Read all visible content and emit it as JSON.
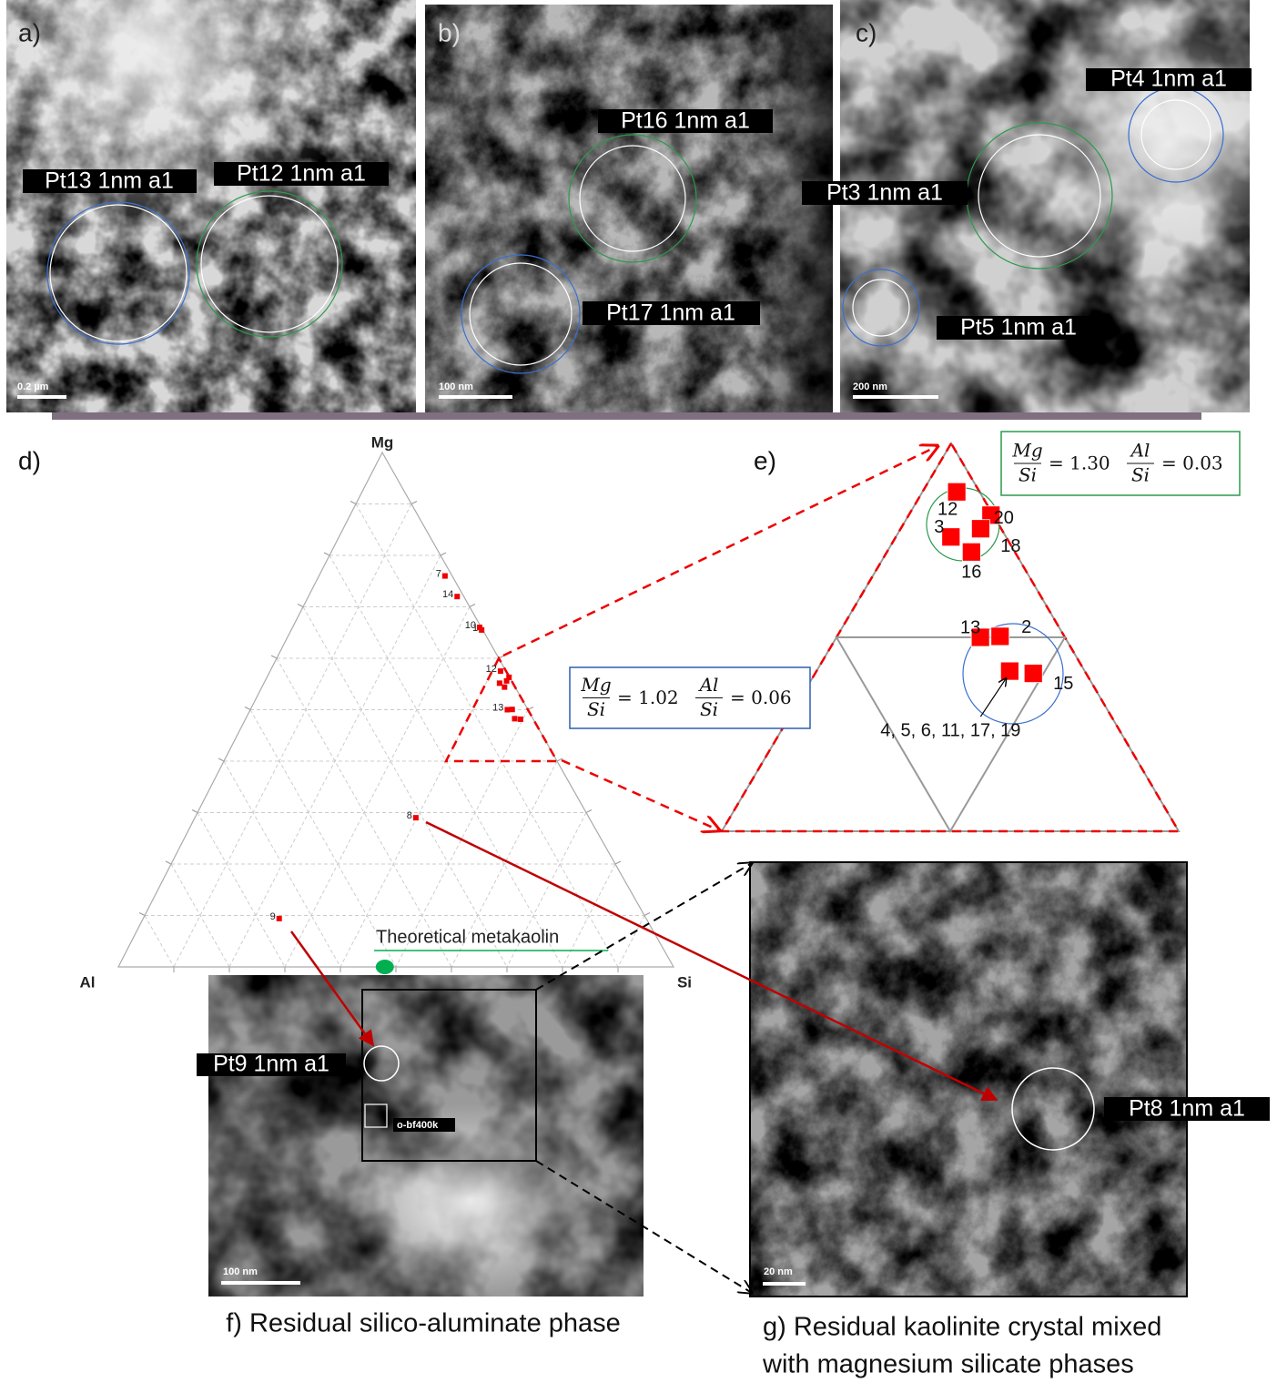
{
  "micrographs": [
    {
      "letter": "a)",
      "scale_bar": "0.2 µm",
      "labels": [
        "Pt13 1nm a1",
        "Pt12 1nm a1"
      ]
    },
    {
      "letter": "b)",
      "scale_bar": "100 nm",
      "labels": [
        "Pt16 1nm a1",
        "Pt17 1nm a1"
      ]
    },
    {
      "letter": "c)",
      "scale_bar": "200 nm",
      "labels": [
        "Pt4 1nm a1",
        "Pt3 1nm a1",
        "Pt5 1nm a1"
      ]
    }
  ],
  "ternary": {
    "letter": "d)",
    "apex_labels": {
      "top": "Mg",
      "left": "Al",
      "right": "Si"
    },
    "points": [
      {
        "label": "7",
        "mg": 0.76,
        "al": 0.013,
        "si": 0.227
      },
      {
        "label": "14",
        "mg": 0.72,
        "al": 0.012,
        "si": 0.268
      },
      {
        "label": "10",
        "mg": 0.66,
        "al": 0.003,
        "si": 0.337
      },
      {
        "label": "1",
        "mg": 0.655,
        "al": 0.002,
        "si": 0.343
      },
      {
        "label": "12",
        "mg": 0.575,
        "al": 0.01,
        "si": 0.415
      },
      {
        "label": "20",
        "mg": 0.563,
        "al": 0.001,
        "si": 0.436
      },
      {
        "label": "3",
        "mg": 0.551,
        "al": 0.024,
        "si": 0.424
      },
      {
        "label": "18",
        "mg": 0.556,
        "al": 0.009,
        "si": 0.435
      },
      {
        "label": "16",
        "mg": 0.544,
        "al": 0.019,
        "si": 0.437
      },
      {
        "label": "13",
        "mg": 0.5,
        "al": 0.037,
        "si": 0.463
      },
      {
        "label": "2",
        "mg": 0.5,
        "al": 0.028,
        "si": 0.471
      },
      {
        "label": "4, 5, 6, 11, 17, 19",
        "mg": 0.483,
        "al": 0.033,
        "si": 0.485
      },
      {
        "label": "15",
        "mg": 0.481,
        "al": 0.023,
        "si": 0.495
      },
      {
        "label": "8",
        "mg": 0.29,
        "al": 0.312,
        "si": 0.398
      },
      {
        "label": "9",
        "mg": 0.094,
        "al": 0.661,
        "si": 0.245
      }
    ],
    "reference": {
      "label": "Theoretical metakaolin",
      "mg": 0,
      "al": 0.52,
      "si": 0.48
    },
    "ratio_boxes": [
      {
        "ratios": [
          {
            "num": "Mg",
            "den": "Si",
            "value": "= 1.02"
          },
          {
            "num": "Al",
            "den": "Si",
            "value": "= 0.06"
          }
        ]
      },
      {
        "ratios": [
          {
            "num": "Mg",
            "den": "Si",
            "value": "= 1.30"
          },
          {
            "num": "Al",
            "den": "Si",
            "value": "= 0.03"
          }
        ]
      }
    ]
  },
  "zoom": {
    "letter": "e)"
  },
  "panel_f": {
    "caption": "f) Residual silico-aluminate phase",
    "scale_bar": "100 nm",
    "label": "Pt9 1nm a1",
    "tag": "o-bf400k"
  },
  "panel_g": {
    "caption_lines": [
      "g) Residual kaolinite crystal mixed",
      "with magnesium silicate phases"
    ],
    "scale_bar": "20 nm",
    "label": "Pt8 1nm a1"
  }
}
